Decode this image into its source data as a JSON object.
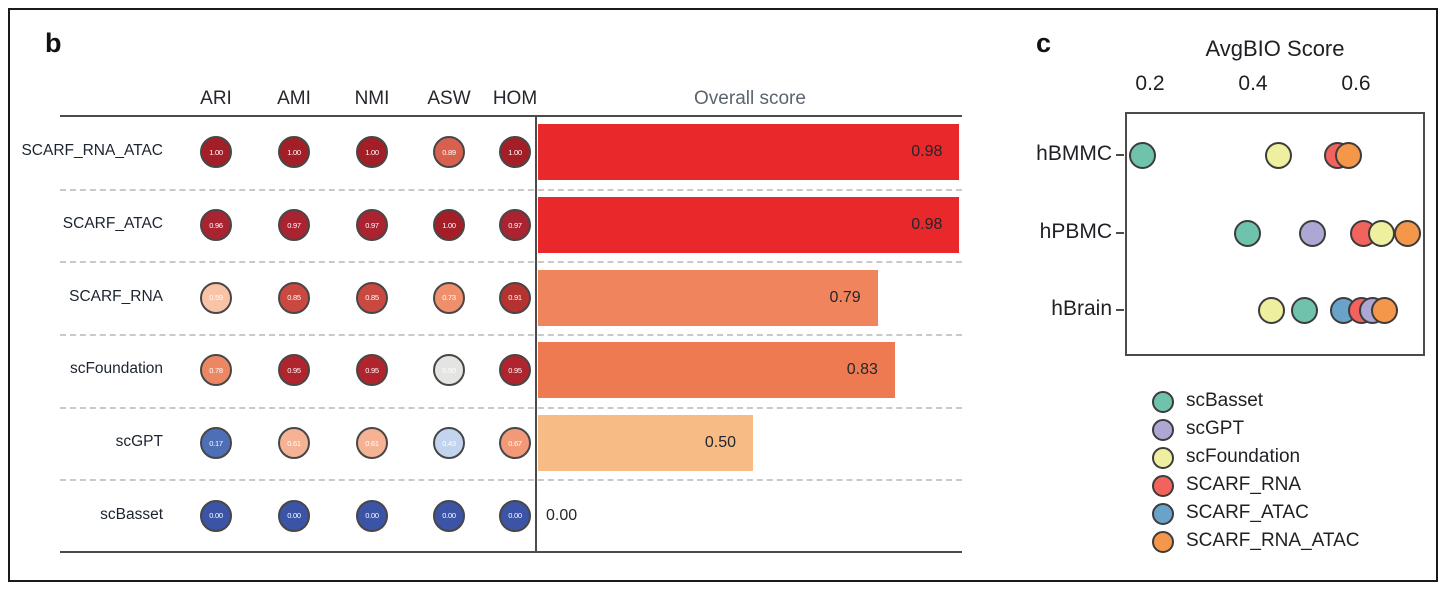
{
  "figure": {
    "panel_b_label": "b",
    "panel_c_label": "c"
  },
  "chart_data": [
    {
      "id": "overall-benchmark",
      "type": "table",
      "title": "Overall score",
      "metric_columns": [
        "ARI",
        "AMI",
        "NMI",
        "ASW",
        "HOM"
      ],
      "rows": [
        {
          "method": "SCARF_RNA_ATAC",
          "values": [
            "1.00",
            "1.00",
            "1.00",
            "0.89",
            "1.00"
          ],
          "dot_colors": [
            "#a41e28",
            "#a41e28",
            "#a41e28",
            "#d8604e",
            "#a41e28"
          ],
          "overall_label": "0.98",
          "overall": 0.98,
          "bar_color": "#e8282b"
        },
        {
          "method": "SCARF_ATAC",
          "values": [
            "0.96",
            "0.97",
            "0.97",
            "1.00",
            "0.97"
          ],
          "dot_colors": [
            "#aa2330",
            "#aa2330",
            "#aa2330",
            "#a41e28",
            "#aa2330"
          ],
          "overall_label": "0.98",
          "overall": 0.98,
          "bar_color": "#e8282b"
        },
        {
          "method": "SCARF_RNA",
          "values": [
            "0.59",
            "0.85",
            "0.85",
            "0.73",
            "0.91"
          ],
          "dot_colors": [
            "#f8c3a6",
            "#c94840",
            "#c94840",
            "#f08f6c",
            "#b4322f"
          ],
          "overall_label": "0.79",
          "overall": 0.79,
          "bar_color": "#f0845c"
        },
        {
          "method": "scFoundation",
          "values": [
            "0.78",
            "0.95",
            "0.95",
            "0.50",
            "0.95"
          ],
          "dot_colors": [
            "#ec8763",
            "#b0242e",
            "#b0242e",
            "#e4e4e2",
            "#b0242e"
          ],
          "overall_label": "0.83",
          "overall": 0.83,
          "bar_color": "#ee7a51"
        },
        {
          "method": "scGPT",
          "values": [
            "0.17",
            "0.61",
            "0.61",
            "0.43",
            "0.67"
          ],
          "dot_colors": [
            "#4d6fb6",
            "#f6b295",
            "#f6b295",
            "#c3d5ee",
            "#f29a78"
          ],
          "overall_label": "0.50",
          "overall": 0.5,
          "bar_color": "#f7bb85"
        },
        {
          "method": "scBasset",
          "values": [
            "0.00",
            "0.00",
            "0.00",
            "0.00",
            "0.00"
          ],
          "dot_colors": [
            "#3b54a5",
            "#3b54a5",
            "#3b54a5",
            "#3b54a5",
            "#3b54a5"
          ],
          "overall_label": "0.00",
          "overall": 0.0,
          "bar_color": null
        }
      ]
    },
    {
      "id": "avgbio-score",
      "type": "scatter",
      "title": "AvgBIO Score",
      "x_ticks": [
        "0.2",
        "0.4",
        "0.6"
      ],
      "x_tick_values": [
        0.2,
        0.4,
        0.6
      ],
      "xlim": [
        0.15,
        0.735
      ],
      "categories": [
        "hBMMC",
        "hPBMC",
        "hBrain"
      ],
      "series": [
        {
          "name": "hBMMC",
          "points": [
            {
              "method": "scBasset",
              "x": 0.185
            },
            {
              "method": "scFoundation",
              "x": 0.45
            },
            {
              "method": "SCARF_RNA",
              "x": 0.565
            },
            {
              "method": "SCARF_RNA_ATAC",
              "x": 0.585
            }
          ]
        },
        {
          "name": "hPBMC",
          "points": [
            {
              "method": "scBasset",
              "x": 0.39
            },
            {
              "method": "scGPT",
              "x": 0.515
            },
            {
              "method": "SCARF_RNA",
              "x": 0.615
            },
            {
              "method": "scFoundation",
              "x": 0.65
            },
            {
              "method": "SCARF_RNA_ATAC",
              "x": 0.7
            }
          ]
        },
        {
          "name": "hBrain",
          "points": [
            {
              "method": "scFoundation",
              "x": 0.435
            },
            {
              "method": "scBasset",
              "x": 0.5
            },
            {
              "method": "SCARF_ATAC",
              "x": 0.575
            },
            {
              "method": "SCARF_RNA",
              "x": 0.61
            },
            {
              "method": "scGPT",
              "x": 0.632
            },
            {
              "method": "SCARF_RNA_ATAC",
              "x": 0.655
            }
          ]
        }
      ],
      "legend": [
        {
          "label": "scBasset",
          "color": "#6fc3ac"
        },
        {
          "label": "scGPT",
          "color": "#aca7d3"
        },
        {
          "label": "scFoundation",
          "color": "#efefa0"
        },
        {
          "label": "SCARF_RNA",
          "color": "#f2635e"
        },
        {
          "label": "SCARF_ATAC",
          "color": "#69a3ca"
        },
        {
          "label": "SCARF_RNA_ATAC",
          "color": "#f4974a"
        }
      ]
    }
  ]
}
